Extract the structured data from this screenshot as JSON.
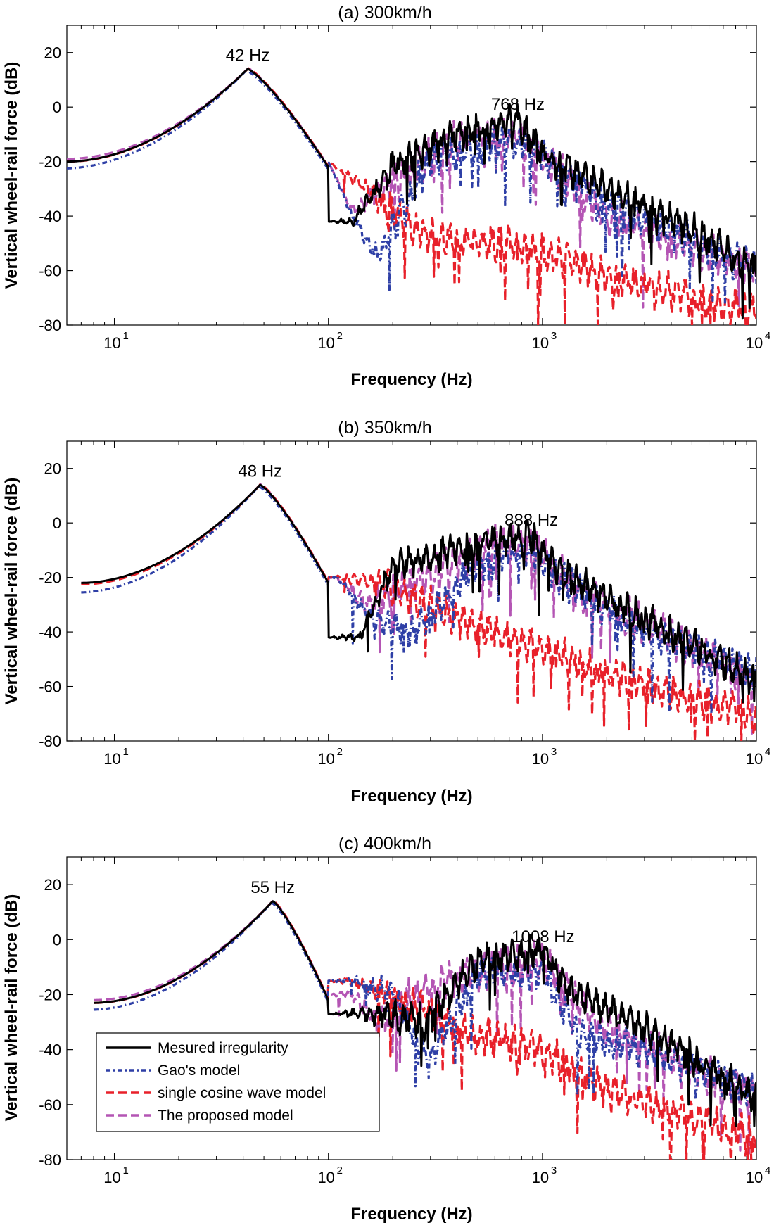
{
  "figure": {
    "ylabel": "Vertical wheel-rail force (dB)",
    "xlabel": "Frequency (Hz)",
    "legend": {
      "location": "lower-left of panel (c)",
      "entries": [
        {
          "label": "Mesured irregularity",
          "color": "#000000",
          "style": "solid"
        },
        {
          "label": "Gao's model",
          "color": "#2e3fa6",
          "style": "dashdot"
        },
        {
          "label": "single cosine wave model",
          "color": "#e8202a",
          "style": "dashed"
        },
        {
          "label": "The proposed model",
          "color": "#b455b4",
          "style": "dashed"
        }
      ]
    }
  },
  "chart_data": [
    {
      "type": "line",
      "title": "(a) 300km/h",
      "xlabel": "Frequency (Hz)",
      "ylabel": "Vertical wheel-rail force (dB)",
      "xscale": "log",
      "xlim": [
        6,
        10000
      ],
      "ylim": [
        -80,
        30
      ],
      "yticks": [
        20,
        0,
        -20,
        -40,
        -60,
        -80
      ],
      "xticks": [
        {
          "base": "10",
          "exp": "1"
        },
        {
          "base": "10",
          "exp": "2"
        },
        {
          "base": "10",
          "exp": "3"
        },
        {
          "base": "10",
          "exp": "4"
        }
      ],
      "peak_freq": 42,
      "high_freq": 768,
      "annotations": [
        {
          "text": "42 Hz",
          "x": 42,
          "y": 17
        },
        {
          "text": "768 Hz",
          "x": 768,
          "y": -1
        }
      ],
      "series": [
        {
          "name": "Mesured irregularity",
          "color": "#000000",
          "dash": "",
          "x0": 6,
          "y0": -20,
          "offset": 0,
          "seed": 11,
          "trend_hi": -15,
          "trend_lo": -55,
          "amp": 13,
          "anchors": [
            [
              130,
              -42
            ],
            [
              200,
              -22
            ],
            [
              400,
              -10
            ],
            [
              768,
              -5
            ],
            [
              1000,
              -18
            ],
            [
              2000,
              -30
            ],
            [
              5000,
              -45
            ],
            [
              10000,
              -60
            ]
          ]
        },
        {
          "name": "Gao's model",
          "color": "#2e3fa6",
          "dash": "7,4,2,4",
          "x0": 6,
          "y0": -21,
          "offset": -1.5,
          "seed": 23,
          "trend_hi": -16,
          "trend_lo": -58,
          "amp": 14,
          "anchors": [
            [
              100,
              -20
            ],
            [
              130,
              -40
            ],
            [
              170,
              -55
            ],
            [
              300,
              -18
            ],
            [
              768,
              -12
            ],
            [
              1000,
              -18
            ],
            [
              2000,
              -35
            ],
            [
              10000,
              -60
            ]
          ]
        },
        {
          "name": "single cosine wave model",
          "color": "#e8202a",
          "dash": "12,6",
          "x0": 6,
          "y0": -20.5,
          "offset": 0.5,
          "seed": 37,
          "trend_hi": -28,
          "trend_lo": -68,
          "amp": 14,
          "anchors": [
            [
              100,
              -20
            ],
            [
              150,
              -30
            ],
            [
              250,
              -45
            ],
            [
              400,
              -50
            ],
            [
              768,
              -50
            ],
            [
              2000,
              -62
            ],
            [
              5000,
              -70
            ],
            [
              10000,
              -75
            ]
          ]
        },
        {
          "name": "The proposed model",
          "color": "#b455b4",
          "dash": "12,6",
          "x0": 6,
          "y0": -19.5,
          "offset": 0.5,
          "seed": 53,
          "trend_hi": -14,
          "trend_lo": -60,
          "amp": 15,
          "anchors": [
            [
              100,
              -20
            ],
            [
              130,
              -38
            ],
            [
              200,
              -28
            ],
            [
              400,
              -12
            ],
            [
              768,
              -10
            ],
            [
              1000,
              -18
            ],
            [
              2000,
              -40
            ],
            [
              10000,
              -60
            ]
          ]
        }
      ]
    },
    {
      "type": "line",
      "title": "(b) 350km/h",
      "xlabel": "Frequency (Hz)",
      "ylabel": "Vertical wheel-rail force (dB)",
      "xscale": "log",
      "xlim": [
        6,
        10000
      ],
      "ylim": [
        -80,
        30
      ],
      "yticks": [
        20,
        0,
        -20,
        -40,
        -60,
        -80
      ],
      "xticks": [
        {
          "base": "10",
          "exp": "1"
        },
        {
          "base": "10",
          "exp": "2"
        },
        {
          "base": "10",
          "exp": "3"
        },
        {
          "base": "10",
          "exp": "4"
        }
      ],
      "peak_freq": 48,
      "high_freq": 888,
      "annotations": [
        {
          "text": "48 Hz",
          "x": 48,
          "y": 17
        },
        {
          "text": "888 Hz",
          "x": 888,
          "y": -1
        }
      ],
      "series": [
        {
          "name": "Mesured irregularity",
          "color": "#000000",
          "dash": "",
          "x0": 7,
          "y0": -22,
          "offset": 0,
          "seed": 61,
          "trend_hi": -14,
          "trend_lo": -55,
          "amp": 13,
          "anchors": [
            [
              140,
              -42
            ],
            [
              200,
              -16
            ],
            [
              500,
              -8
            ],
            [
              888,
              -5
            ],
            [
              1200,
              -18
            ],
            [
              3000,
              -35
            ],
            [
              10000,
              -58
            ]
          ]
        },
        {
          "name": "Gao's model",
          "color": "#2e3fa6",
          "dash": "7,4,2,4",
          "x0": 7,
          "y0": -24,
          "offset": -1.5,
          "seed": 71,
          "trend_hi": -15,
          "trend_lo": -55,
          "amp": 13,
          "anchors": [
            [
              110,
              -20
            ],
            [
              160,
              -35
            ],
            [
              250,
              -40
            ],
            [
              500,
              -15
            ],
            [
              888,
              -10
            ],
            [
              1200,
              -20
            ],
            [
              3000,
              -40
            ],
            [
              10000,
              -55
            ]
          ]
        },
        {
          "name": "single cosine wave model",
          "color": "#e8202a",
          "dash": "12,6",
          "x0": 7,
          "y0": -23,
          "offset": 0.5,
          "seed": 83,
          "trend_hi": -28,
          "trend_lo": -68,
          "amp": 14,
          "anchors": [
            [
              110,
              -20
            ],
            [
              180,
              -22
            ],
            [
              400,
              -35
            ],
            [
              888,
              -45
            ],
            [
              2000,
              -55
            ],
            [
              5000,
              -65
            ],
            [
              10000,
              -70
            ]
          ]
        },
        {
          "name": "The proposed model",
          "color": "#b455b4",
          "dash": "12,6",
          "x0": 7,
          "y0": -22.5,
          "offset": 0.5,
          "seed": 97,
          "trend_hi": -14,
          "trend_lo": -60,
          "amp": 15,
          "anchors": [
            [
              110,
              -20
            ],
            [
              150,
              -30
            ],
            [
              250,
              -22
            ],
            [
              600,
              -8
            ],
            [
              888,
              -8
            ],
            [
              1500,
              -25
            ],
            [
              10000,
              -58
            ]
          ]
        }
      ]
    },
    {
      "type": "line",
      "title": "(c) 400km/h",
      "xlabel": "Frequency (Hz)",
      "ylabel": "Vertical wheel-rail force (dB)",
      "xscale": "log",
      "xlim": [
        6,
        10000
      ],
      "ylim": [
        -80,
        30
      ],
      "yticks": [
        20,
        0,
        -20,
        -40,
        -60,
        -80
      ],
      "xticks": [
        {
          "base": "10",
          "exp": "1"
        },
        {
          "base": "10",
          "exp": "2"
        },
        {
          "base": "10",
          "exp": "3"
        },
        {
          "base": "10",
          "exp": "4"
        }
      ],
      "peak_freq": 55,
      "high_freq": 1008,
      "annotations": [
        {
          "text": "55 Hz",
          "x": 55,
          "y": 17
        },
        {
          "text": "1008 Hz",
          "x": 1008,
          "y": -1
        }
      ],
      "series": [
        {
          "name": "Mesured irregularity",
          "color": "#000000",
          "dash": "",
          "x0": 8,
          "y0": -23,
          "offset": 0,
          "seed": 103,
          "trend_hi": -14,
          "trend_lo": -55,
          "amp": 13,
          "anchors": [
            [
              170,
              -27
            ],
            [
              280,
              -30
            ],
            [
              500,
              -8
            ],
            [
              1008,
              -4
            ],
            [
              1300,
              -18
            ],
            [
              3000,
              -32
            ],
            [
              10000,
              -58
            ]
          ]
        },
        {
          "name": "Gao's model",
          "color": "#2e3fa6",
          "dash": "7,4,2,4",
          "x0": 8,
          "y0": -24,
          "offset": -1.5,
          "seed": 113,
          "trend_hi": -15,
          "trend_lo": -55,
          "amp": 13,
          "anchors": [
            [
              130,
              -15
            ],
            [
              200,
              -20
            ],
            [
              290,
              -45
            ],
            [
              500,
              -12
            ],
            [
              1008,
              -12
            ],
            [
              1500,
              -35
            ],
            [
              3000,
              -40
            ],
            [
              10000,
              -55
            ]
          ]
        },
        {
          "name": "single cosine wave model",
          "color": "#e8202a",
          "dash": "12,6",
          "x0": 8,
          "y0": -23.5,
          "offset": 0.5,
          "seed": 127,
          "trend_hi": -28,
          "trend_lo": -65,
          "amp": 14,
          "anchors": [
            [
              130,
              -15
            ],
            [
              220,
              -22
            ],
            [
              500,
              -35
            ],
            [
              1008,
              -40
            ],
            [
              2000,
              -55
            ],
            [
              5000,
              -65
            ],
            [
              10000,
              -72
            ]
          ]
        },
        {
          "name": "The proposed model",
          "color": "#b455b4",
          "dash": "12,6",
          "x0": 8,
          "y0": -22.5,
          "offset": 0.5,
          "seed": 131,
          "trend_hi": -14,
          "trend_lo": -58,
          "amp": 15,
          "anchors": [
            [
              130,
              -20
            ],
            [
              170,
              -30
            ],
            [
              250,
              -20
            ],
            [
              600,
              -10
            ],
            [
              1008,
              -8
            ],
            [
              1800,
              -30
            ],
            [
              10000,
              -58
            ]
          ]
        }
      ]
    }
  ]
}
